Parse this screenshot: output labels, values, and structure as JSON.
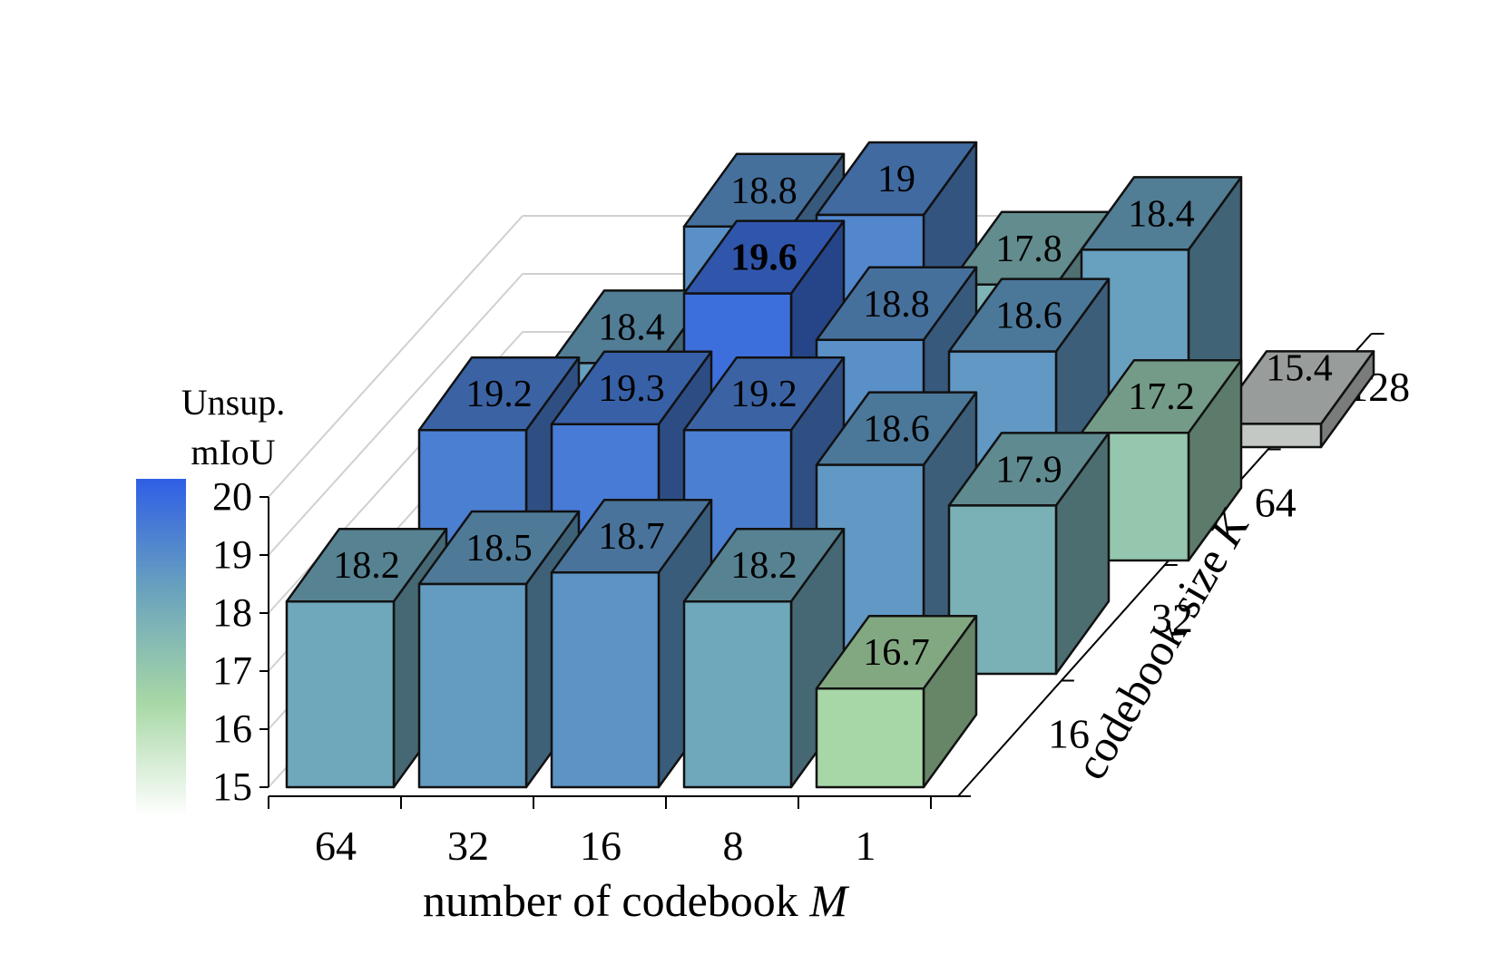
{
  "chart_data": {
    "type": "bar3d",
    "x_axis": {
      "label": "number of codebook",
      "label_italic": "M",
      "ticks": [
        "64",
        "32",
        "16",
        "8",
        "1"
      ]
    },
    "y_axis": {
      "label": "codebook size",
      "label_italic": "K",
      "ticks": [
        "16",
        "32",
        "64",
        "128"
      ]
    },
    "z_axis": {
      "ticks": [
        "15",
        "16",
        "17",
        "18",
        "19",
        "20"
      ],
      "range": [
        15,
        20
      ]
    },
    "colorbar": {
      "title_line1": "Unsup.",
      "title_line2": "mIoU",
      "range": [
        15,
        20
      ],
      "stops": [
        "#ffffff",
        "#a8d8a6",
        "#6aa3bd",
        "#2f5ee6"
      ]
    },
    "grid": true,
    "bars": [
      {
        "M": "64",
        "K": "16",
        "value": 18.2,
        "label": "18.2"
      },
      {
        "M": "32",
        "K": "16",
        "value": 18.5,
        "label": "18.5"
      },
      {
        "M": "16",
        "K": "16",
        "value": 18.7,
        "label": "18.7"
      },
      {
        "M": "8",
        "K": "16",
        "value": 18.2,
        "label": "18.2"
      },
      {
        "M": "1",
        "K": "16",
        "value": 16.7,
        "label": "16.7"
      },
      {
        "M": "64",
        "K": "32",
        "value": 19.2,
        "label": "19.2"
      },
      {
        "M": "32",
        "K": "32",
        "value": 19.3,
        "label": "19.3"
      },
      {
        "M": "16",
        "K": "32",
        "value": 19.2,
        "label": "19.2"
      },
      {
        "M": "8",
        "K": "32",
        "value": 18.6,
        "label": "18.6"
      },
      {
        "M": "1",
        "K": "32",
        "value": 17.9,
        "label": "17.9"
      },
      {
        "M": "64",
        "K": "64",
        "value": 18.4,
        "label": "18.4"
      },
      {
        "M": "32",
        "K": "64",
        "value": 19.6,
        "label": "19.6",
        "bold": true
      },
      {
        "M": "16",
        "K": "64",
        "value": 18.8,
        "label": "18.8"
      },
      {
        "M": "8",
        "K": "64",
        "value": 18.6,
        "label": "18.6"
      },
      {
        "M": "1",
        "K": "64",
        "value": 17.2,
        "label": "17.2"
      },
      {
        "M": "64",
        "K": "128",
        "value": 18.8,
        "label": "18.8"
      },
      {
        "M": "32",
        "K": "128",
        "value": 19.0,
        "label": "19"
      },
      {
        "M": "16",
        "K": "128",
        "value": 17.8,
        "label": "17.8"
      },
      {
        "M": "8",
        "K": "128",
        "value": 18.4,
        "label": "18.4"
      },
      {
        "M": "1",
        "K": "128",
        "value": 15.4,
        "label": "15.4",
        "neutral": true
      }
    ]
  }
}
